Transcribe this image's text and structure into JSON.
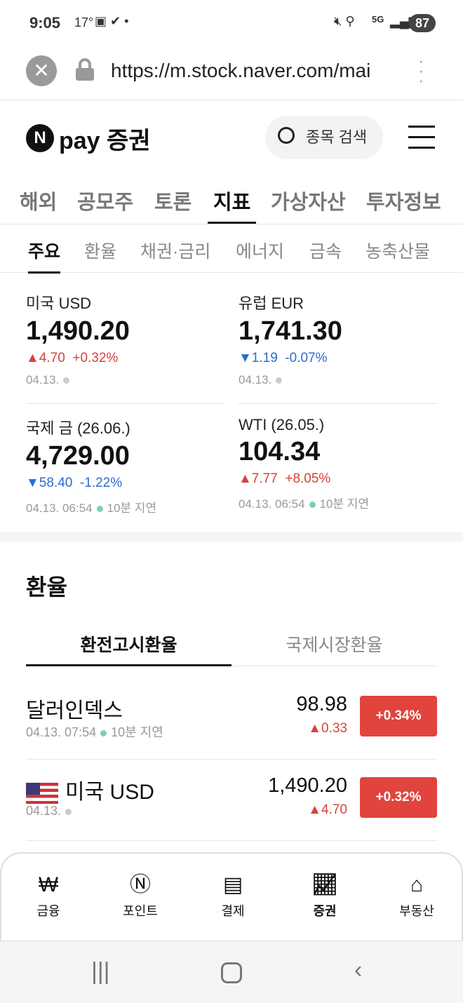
{
  "status": {
    "time": "9:05",
    "temp": "17°",
    "battery": "87",
    "network": "5G"
  },
  "browser": {
    "url": "https://m.stock.naver.com/mai"
  },
  "header": {
    "logo": "pay 증권",
    "logo_n": "N",
    "search_label": "종목 검색"
  },
  "tabs": [
    {
      "label": "해외"
    },
    {
      "label": "공모주"
    },
    {
      "label": "토론"
    },
    {
      "label": "지표",
      "active": true
    },
    {
      "label": "가상자산"
    },
    {
      "label": "투자정보"
    }
  ],
  "subtabs": [
    {
      "label": "주요",
      "active": true
    },
    {
      "label": "환율"
    },
    {
      "label": "채권·금리"
    },
    {
      "label": "에너지"
    },
    {
      "label": "금속"
    },
    {
      "label": "농축산물"
    }
  ],
  "cards": [
    {
      "name": "미국 USD",
      "value": "1,490.20",
      "change": "▲4.70",
      "pct": "+0.32%",
      "dir": "up",
      "date": "04.13.",
      "delay": ""
    },
    {
      "name": "유럽 EUR",
      "value": "1,741.30",
      "change": "▼1.19",
      "pct": "-0.07%",
      "dir": "down",
      "date": "04.13.",
      "delay": ""
    },
    {
      "name": "국제 금 (26.06.)",
      "value": "4,729.00",
      "change": "▼58.40",
      "pct": "-1.22%",
      "dir": "down",
      "date": "04.13. 06:54",
      "delay": "10분 지연"
    },
    {
      "name": "WTI (26.05.)",
      "value": "104.34",
      "change": "▲7.77",
      "pct": "+8.05%",
      "dir": "up",
      "date": "04.13. 06:54",
      "delay": "10분 지연"
    }
  ],
  "fx": {
    "title": "환율",
    "tabs": [
      {
        "label": "환전고시환율",
        "active": true
      },
      {
        "label": "국제시장환율"
      }
    ],
    "rows": [
      {
        "name": "달러인덱스",
        "date": "04.13. 07:54",
        "delay": "10분 지연",
        "value": "98.98",
        "change": "▲0.33",
        "badge": "+0.34%"
      },
      {
        "name": "미국 USD",
        "date": "04.13.",
        "delay": "",
        "value": "1,490.20",
        "change": "▲4.70",
        "badge": "+0.32%"
      }
    ]
  },
  "bottom_nav": [
    {
      "label": "금융",
      "icon": "won-folder-icon"
    },
    {
      "label": "포인트",
      "icon": "point-coin-icon"
    },
    {
      "label": "결제",
      "icon": "receipt-icon"
    },
    {
      "label": "증권",
      "icon": "chart-up-icon",
      "active": true
    },
    {
      "label": "부동산",
      "icon": "building-icon"
    }
  ],
  "colors": {
    "up": "#d8413a",
    "down": "#2c6ccf",
    "badge": "#e0443d"
  }
}
